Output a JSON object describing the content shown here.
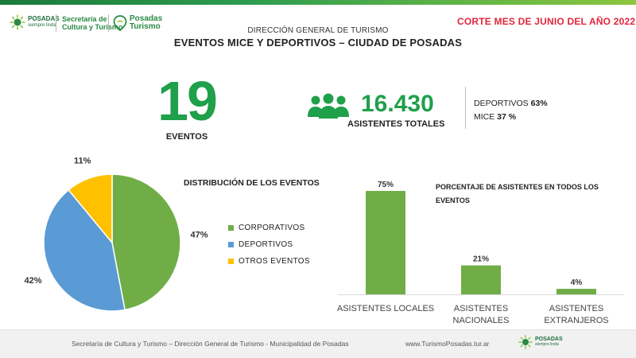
{
  "header": {
    "posadas_logo": {
      "name": "POSADAS",
      "tagline": "siempre linda"
    },
    "secretaria_logo": {
      "line1": "Secretaría de",
      "line2": "Cultura y Turismo"
    },
    "turismo_logo": {
      "line1": "Posadas",
      "line2": "Turismo"
    },
    "cut_date": "CORTE MES DE JUNIO DEL AÑO 2022",
    "subtitle": "DIRECCIÓN GENERAL DE TURISMO",
    "title": "EVENTOS MICE Y DEPORTIVOS – CIUDAD DE POSADAS"
  },
  "kpis": {
    "events_count": "19",
    "events_label": "EVENTOS",
    "attendees_total": "16.430",
    "attendees_label": "ASISTENTES TOTALES",
    "split": [
      {
        "label": "DEPORTIVOS",
        "value": "63%"
      },
      {
        "label": "MICE",
        "value": "37 %"
      }
    ]
  },
  "colors": {
    "brand_green": "#1fa04b",
    "accent_red": "#e2243c",
    "corporativos": "#70ad47",
    "deportivos": "#5b9bd5",
    "otros": "#ffc000"
  },
  "icons": {
    "attendees": "people-group-icon"
  },
  "chart_data": [
    {
      "type": "pie",
      "title": "DISTRIBUCIÓN DE LOS EVENTOS",
      "slices": [
        {
          "label": "CORPORATIVOS",
          "value": 47,
          "label_text": "47%",
          "color": "#70ad47"
        },
        {
          "label": "DEPORTIVOS",
          "value": 42,
          "label_text": "42%",
          "color": "#5b9bd5"
        },
        {
          "label": "OTROS EVENTOS",
          "value": 11,
          "label_text": "11%",
          "color": "#ffc000"
        }
      ],
      "legend_position": "right"
    },
    {
      "type": "bar",
      "title": "PORCENTAJE DE ASISTENTES EN TODOS LOS EVENTOS",
      "categories": [
        "ASISTENTES LOCALES",
        "ASISTENTES NACIONALES",
        "ASISTENTES EXTRANJEROS"
      ],
      "values": [
        75,
        21,
        4
      ],
      "data_labels": [
        "75%",
        "21%",
        "4%"
      ],
      "unit": "%",
      "color": "#70ad47",
      "ylim": [
        0,
        75
      ],
      "grid": false
    }
  ],
  "footer": {
    "text": "Secretaría de Cultura y Turismo – Dirección General de Turismo - Municipalidad de Posadas",
    "url": "www.TurismoPosadas.tur.ar",
    "logo": {
      "name": "POSADAS",
      "tagline": "siempre linda"
    }
  }
}
